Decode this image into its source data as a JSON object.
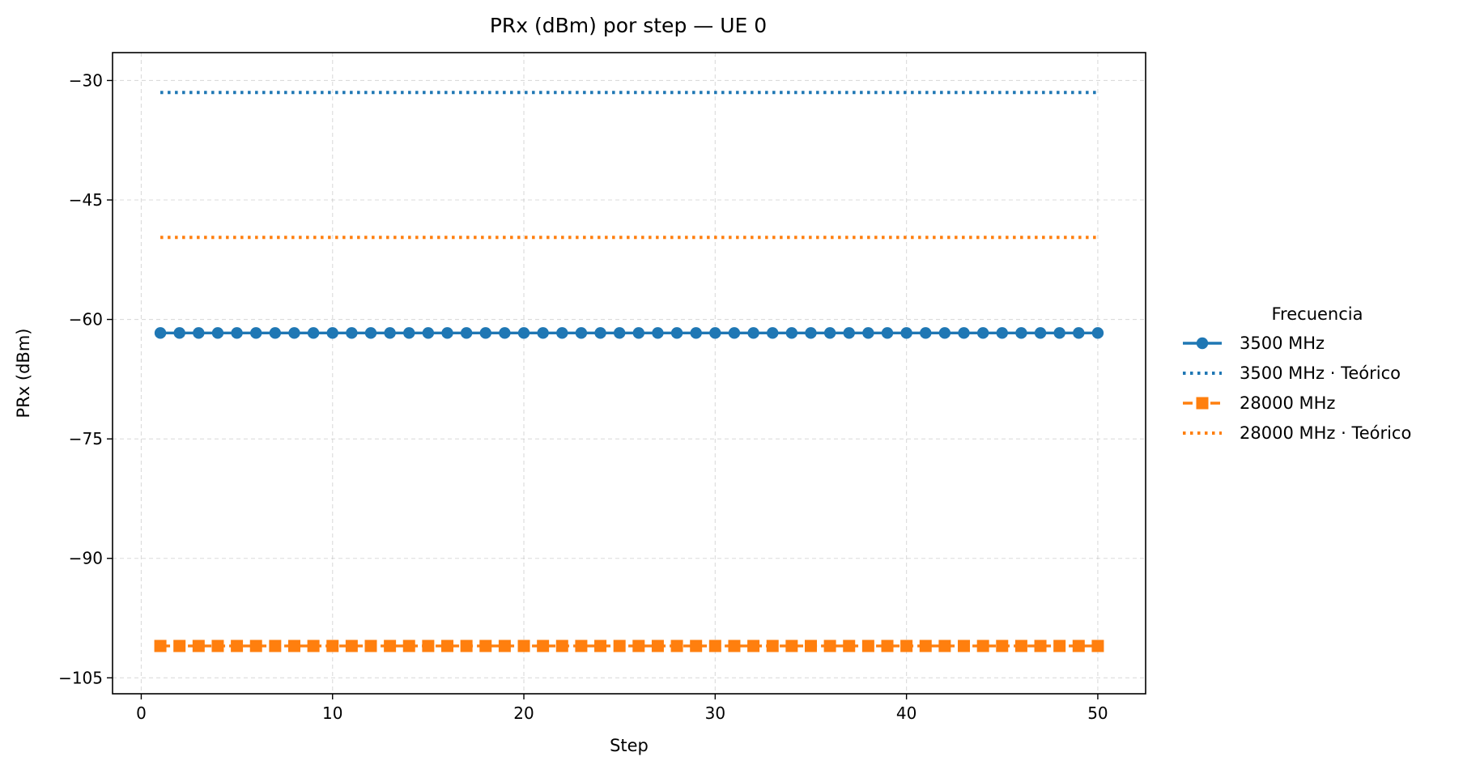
{
  "chart_data": {
    "type": "line",
    "title": "PRx (dBm) por step — UE 0",
    "xlabel": "Step",
    "ylabel": "PRx (dBm)",
    "xlim": [
      -1.5,
      52.5
    ],
    "ylim": [
      -107,
      -26.5
    ],
    "xticks": [
      0,
      10,
      20,
      30,
      40,
      50
    ],
    "yticks": [
      -30,
      -45,
      -60,
      -75,
      -90,
      -105
    ],
    "ytick_labels": [
      "−30",
      "−45",
      "−60",
      "−75",
      "−90",
      "−105"
    ],
    "grid": true,
    "legend": {
      "title": "Frecuencia",
      "placement": "outside-right"
    },
    "x_start": 1,
    "x_end": 50,
    "series": [
      {
        "name": "3500 MHz",
        "color": "#1f77b4",
        "style": "solid",
        "marker": "circle",
        "value": -61.7
      },
      {
        "name": "3500 MHz · Teórico",
        "color": "#1f77b4",
        "style": "dotted",
        "marker": "none",
        "value": -31.5
      },
      {
        "name": "28000 MHz",
        "color": "#ff7f0e",
        "style": "dashed",
        "marker": "square",
        "value": -101.0
      },
      {
        "name": "28000 MHz · Teórico",
        "color": "#ff7f0e",
        "style": "dotted",
        "marker": "none",
        "value": -49.7
      }
    ]
  }
}
